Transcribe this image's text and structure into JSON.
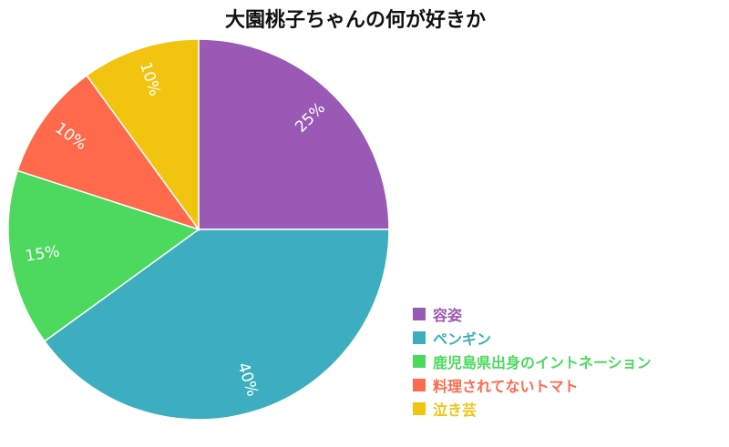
{
  "chart_data": {
    "type": "pie",
    "title": "大園桃子ちゃんの何が好きか",
    "categories": [
      "容姿",
      "ペンギン",
      "鹿児島県出身のイントネーション",
      "料理されてないトマト",
      "泣き芸"
    ],
    "values": [
      25,
      40,
      15,
      10,
      10
    ],
    "labels": [
      "25%",
      "40%",
      "15%",
      "10%",
      "10%"
    ],
    "colors": [
      "#9b59b6",
      "#3daebf",
      "#4cd95e",
      "#ff6a4d",
      "#f1c40f"
    ],
    "legend_position": "bottom-right"
  }
}
